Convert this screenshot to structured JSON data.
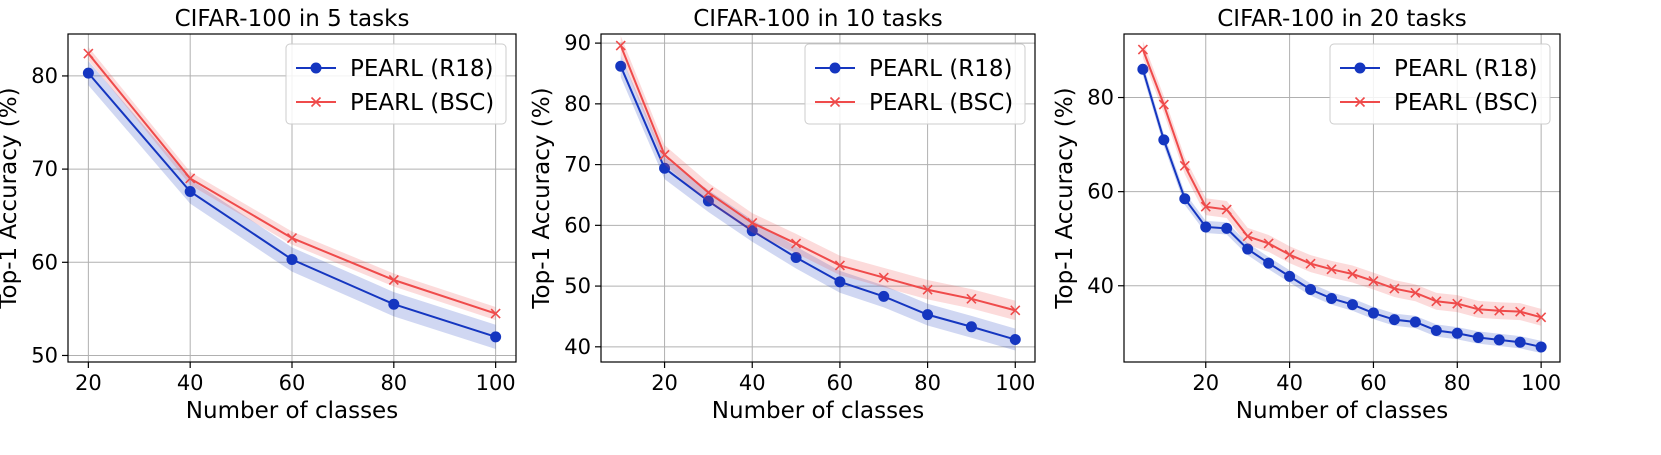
{
  "colors": {
    "r18": "#1536c0",
    "bsc": "#ef4b4b"
  },
  "chart_data": [
    {
      "type": "line",
      "title": "CIFAR-100 in 5 tasks",
      "xlabel": "Number of classes",
      "ylabel": "Top-1 Accuracy (%)",
      "xlim": [
        16,
        104
      ],
      "ylim": [
        49.3,
        84.5
      ],
      "xticks": [
        20,
        40,
        60,
        80,
        100
      ],
      "yticks": [
        50,
        60,
        70,
        80
      ],
      "grid": true,
      "legend_position": "top-right",
      "x": [
        20,
        40,
        60,
        80,
        100
      ],
      "series": [
        {
          "name": "PEARL (R18)",
          "marker": "circle",
          "color": "#1536c0",
          "values": [
            80.3,
            67.6,
            60.3,
            55.5,
            52.0
          ],
          "band": 1.3
        },
        {
          "name": "PEARL (BSC)",
          "marker": "x",
          "color": "#ef4b4b",
          "values": [
            82.4,
            69.0,
            62.6,
            58.1,
            54.5
          ],
          "band": 0.7
        }
      ]
    },
    {
      "type": "line",
      "title": "CIFAR-100 in 10 tasks",
      "xlabel": "Number of classes",
      "ylabel": "Top-1 Accuracy (%)",
      "xlim": [
        5.5,
        104.5
      ],
      "ylim": [
        37.5,
        91.5
      ],
      "xticks": [
        20,
        40,
        60,
        80,
        100
      ],
      "yticks": [
        40,
        50,
        60,
        70,
        80,
        90
      ],
      "grid": true,
      "legend_position": "top-right",
      "x": [
        10,
        20,
        30,
        40,
        50,
        60,
        70,
        80,
        90,
        100
      ],
      "series": [
        {
          "name": "PEARL (R18)",
          "marker": "circle",
          "color": "#1536c0",
          "values": [
            86.2,
            69.4,
            64.0,
            59.1,
            54.7,
            50.7,
            48.3,
            45.3,
            43.3,
            41.2
          ],
          "band": 1.8
        },
        {
          "name": "PEARL (BSC)",
          "marker": "x",
          "color": "#ef4b4b",
          "values": [
            89.6,
            71.6,
            65.4,
            60.4,
            57.0,
            53.4,
            51.4,
            49.4,
            47.9,
            46.0
          ],
          "band": 1.6
        }
      ]
    },
    {
      "type": "line",
      "title": "CIFAR-100 in 20 tasks",
      "xlabel": "Number of classes",
      "ylabel": "Top-1 Accuracy (%)",
      "xlim": [
        0.5,
        104.5
      ],
      "ylim": [
        23.8,
        93.5
      ],
      "xticks": [
        20,
        40,
        60,
        80,
        100
      ],
      "yticks": [
        40,
        60,
        80
      ],
      "grid": true,
      "legend_position": "top-right",
      "x": [
        5,
        10,
        15,
        20,
        25,
        30,
        35,
        40,
        45,
        50,
        55,
        60,
        65,
        70,
        75,
        80,
        85,
        90,
        95,
        100
      ],
      "series": [
        {
          "name": "PEARL (R18)",
          "marker": "circle",
          "color": "#1536c0",
          "values": [
            86.0,
            71.0,
            58.5,
            52.5,
            52.2,
            47.8,
            44.8,
            42.0,
            39.2,
            37.3,
            36.0,
            34.2,
            32.8,
            32.3,
            30.5,
            29.9,
            29.0,
            28.5,
            28.0,
            27.0
          ],
          "band": 1.3
        },
        {
          "name": "PEARL (BSC)",
          "marker": "x",
          "color": "#ef4b4b",
          "values": [
            90.2,
            78.5,
            65.5,
            56.8,
            56.2,
            50.5,
            49.0,
            46.6,
            44.7,
            43.5,
            42.5,
            41.0,
            39.4,
            38.5,
            36.7,
            36.2,
            35.0,
            34.7,
            34.5,
            33.3
          ],
          "band": 1.8
        }
      ]
    }
  ]
}
